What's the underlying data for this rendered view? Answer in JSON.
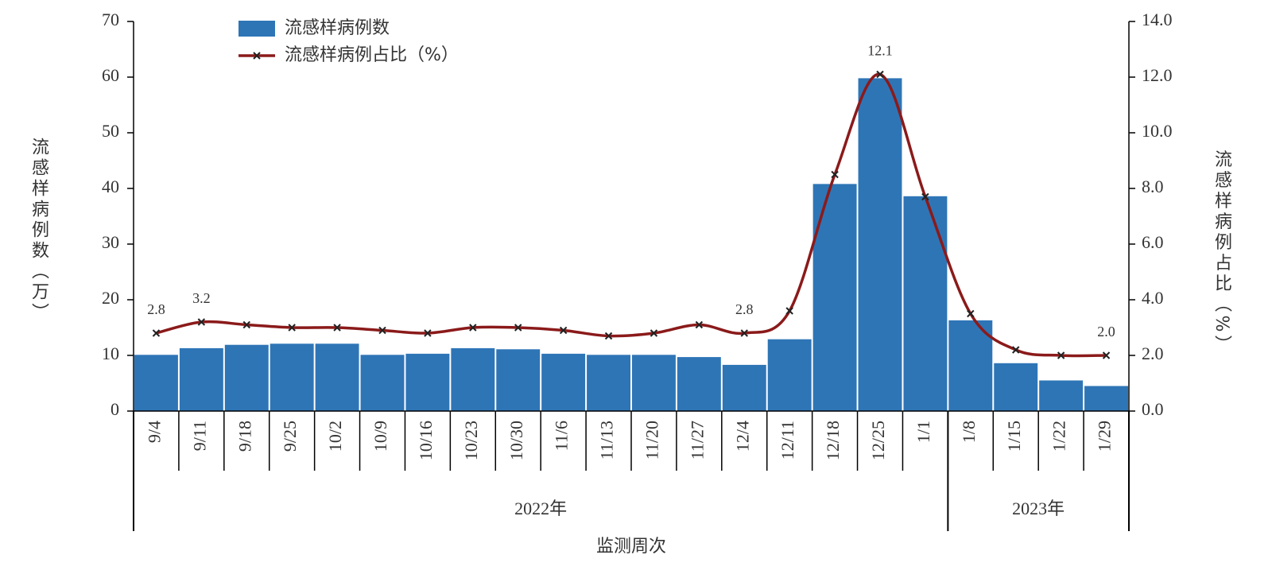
{
  "chart_data": {
    "type": "bar-line",
    "categories": [
      "9/4",
      "9/11",
      "9/18",
      "9/25",
      "10/2",
      "10/9",
      "10/16",
      "10/23",
      "10/30",
      "11/6",
      "11/13",
      "11/20",
      "11/27",
      "12/4",
      "12/11",
      "12/18",
      "12/25",
      "1/1",
      "1/8",
      "1/15",
      "1/22",
      "1/29"
    ],
    "groups": [
      {
        "label": "2022年",
        "count": 18
      },
      {
        "label": "2023年",
        "count": 4
      }
    ],
    "xlabel": "监测周次",
    "ylabel": "流感样病例数（万）",
    "y2label": "流感样病例占比（%）",
    "ylim": [
      0,
      70
    ],
    "yticks": [
      0,
      10,
      20,
      30,
      40,
      50,
      60,
      70
    ],
    "y2lim": [
      0,
      14
    ],
    "y2ticks": [
      {
        "value": 0,
        "label": "0.0"
      },
      {
        "value": 2,
        "label": "2.0"
      },
      {
        "value": 4,
        "label": "4.0"
      },
      {
        "value": 6,
        "label": "6.0"
      },
      {
        "value": 8,
        "label": "8.0"
      },
      {
        "value": 10,
        "label": "10.0"
      },
      {
        "value": 12,
        "label": "12.0"
      },
      {
        "value": 14,
        "label": "14.0"
      }
    ],
    "legend": "top-left",
    "series": [
      {
        "name": "流感样病例数",
        "type": "bar",
        "color": "#2e75b6",
        "values": [
          10.1,
          11.3,
          11.9,
          12.1,
          12.1,
          10.1,
          10.3,
          11.3,
          11.1,
          10.3,
          10.1,
          10.1,
          9.7,
          8.3,
          12.9,
          40.8,
          59.8,
          38.6,
          16.3,
          8.6,
          5.5,
          4.5
        ]
      },
      {
        "name": "流感样病例占比（%）",
        "type": "line",
        "axis": "y2",
        "color": "#8b1a1a",
        "marker_color": "#222",
        "values": [
          2.8,
          3.2,
          3.1,
          3.0,
          3.0,
          2.9,
          2.8,
          3.0,
          3.0,
          2.9,
          2.7,
          2.8,
          3.1,
          2.8,
          3.6,
          8.5,
          12.1,
          7.7,
          3.5,
          2.2,
          2.0,
          2.0
        ],
        "value_labels": [
          "2.8",
          "3.2",
          null,
          null,
          null,
          null,
          null,
          null,
          null,
          null,
          null,
          null,
          null,
          "2.8",
          null,
          null,
          "12.1",
          null,
          null,
          null,
          null,
          "2.0"
        ]
      }
    ]
  }
}
